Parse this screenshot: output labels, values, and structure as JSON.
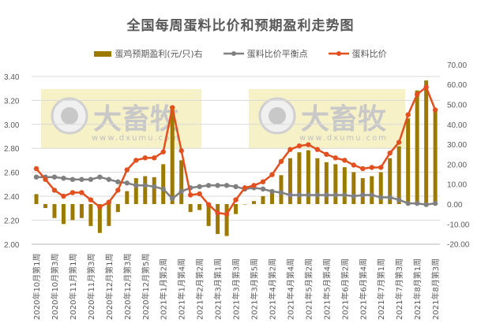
{
  "title": "全国每周蛋料比价和预期盈利走势图",
  "legend": [
    {
      "label": "蛋鸡预期盈利(元/只)右",
      "type": "bar",
      "color": "#9C7A00"
    },
    {
      "label": "蛋料比价平衡点",
      "type": "line",
      "color": "#808080"
    },
    {
      "label": "蛋料比价",
      "type": "line",
      "color": "#E1501E"
    }
  ],
  "watermark": {
    "text": "大畜牧",
    "url_text": "www.dxumu.com"
  },
  "chart_data": {
    "type": "bar+line",
    "title": "全国每周蛋料比价和预期盈利走势图",
    "xlabel": "",
    "ylabel_left": "",
    "ylabel_right": "",
    "ylim_left": [
      2.0,
      3.4
    ],
    "ylim_right": [
      -20,
      70
    ],
    "yticks_left": [
      "3.40",
      "3.20",
      "3.00",
      "2.80",
      "2.60",
      "2.40",
      "2.20",
      "2.00"
    ],
    "yticks_right": [
      "70.00",
      "60.00",
      "50.00",
      "40.00",
      "30.00",
      "20.00",
      "10.00",
      "0.00",
      "-10.00",
      "-20.00"
    ],
    "grid": true,
    "legend_position": "top",
    "x_tick_labels": [
      "2020年10月第1周",
      "2020年10月第3周",
      "2020年11月第1周",
      "2020年11月第3周",
      "2020年12月第1周",
      "2020年12月第3周",
      "2020年12月第5周",
      "2021年1月第2周",
      "2021年1月第4周",
      "2021年2月第2周",
      "2021年3月第1周",
      "2021年3月第3周",
      "2021年3月第5周",
      "2021年4月第2周",
      "2021年4月第4周",
      "2021年5月第2周",
      "2021年5月第4周",
      "2021年6月第2周",
      "2021年6月第4周",
      "2021年7月第1周",
      "2021年7月第3周",
      "2021年8月第1周",
      "2021年8月第3周"
    ],
    "n_points": 45,
    "series": [
      {
        "name": "蛋鸡预期盈利(元/只)右",
        "type": "bar",
        "axis": "right",
        "color": "#9C7A00",
        "values": [
          5,
          -2,
          -7,
          -10,
          -8,
          -7,
          -11,
          -14.5,
          -11,
          -4,
          6.5,
          13,
          14,
          13.5,
          20,
          48,
          22,
          -4,
          -3,
          -11,
          -15,
          -16,
          -5,
          0,
          1.5,
          4,
          6,
          14.5,
          23,
          26,
          27,
          23,
          21,
          20,
          18.5,
          16,
          13,
          14,
          16,
          23,
          29,
          43,
          57,
          62,
          48
        ]
      },
      {
        "name": "蛋料比价平衡点",
        "type": "line",
        "axis": "left",
        "color": "#808080",
        "values": [
          2.56,
          2.56,
          2.56,
          2.55,
          2.54,
          2.54,
          2.54,
          2.56,
          2.54,
          2.52,
          2.51,
          2.49,
          2.49,
          2.48,
          2.46,
          2.38,
          2.44,
          2.47,
          2.48,
          2.49,
          2.49,
          2.49,
          2.48,
          2.46,
          2.47,
          2.46,
          2.44,
          2.43,
          2.41,
          2.41,
          2.41,
          2.41,
          2.41,
          2.41,
          2.41,
          2.4,
          2.41,
          2.41,
          2.39,
          2.39,
          2.37,
          2.34,
          2.34,
          2.33,
          2.34
        ]
      },
      {
        "name": "蛋料比价",
        "type": "line",
        "axis": "left",
        "color": "#E1501E",
        "values": [
          2.63,
          2.54,
          2.45,
          2.4,
          2.43,
          2.43,
          2.37,
          2.31,
          2.35,
          2.45,
          2.62,
          2.7,
          2.72,
          2.72,
          2.77,
          3.14,
          2.78,
          2.41,
          2.42,
          2.33,
          2.26,
          2.25,
          2.37,
          2.47,
          2.49,
          2.52,
          2.58,
          2.69,
          2.79,
          2.82,
          2.83,
          2.79,
          2.75,
          2.72,
          2.7,
          2.66,
          2.63,
          2.64,
          2.64,
          2.76,
          2.85,
          3.08,
          3.25,
          3.31,
          3.12
        ]
      }
    ]
  }
}
